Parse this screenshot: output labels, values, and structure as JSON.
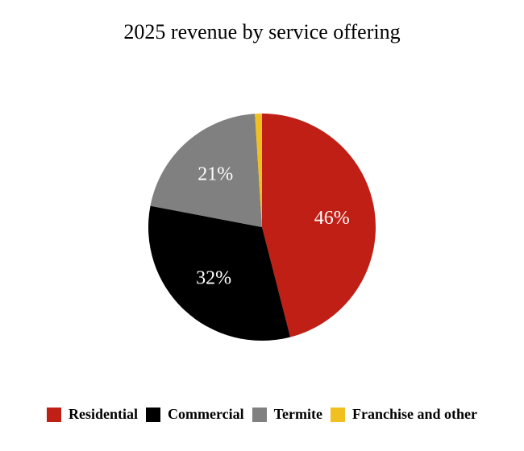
{
  "chart_data": {
    "type": "pie",
    "title": "2025 revenue by service offering",
    "categories": [
      "Residential",
      "Commercial",
      "Termite",
      "Franchise and other"
    ],
    "values": [
      46,
      32,
      21,
      1
    ],
    "value_labels": [
      "46%",
      "32%",
      "21%",
      ""
    ],
    "colors": [
      "#c01f16",
      "#000000",
      "#808080",
      "#f0c020"
    ],
    "start_angle_deg": 0,
    "direction": "clockwise",
    "legend_position": "bottom"
  }
}
